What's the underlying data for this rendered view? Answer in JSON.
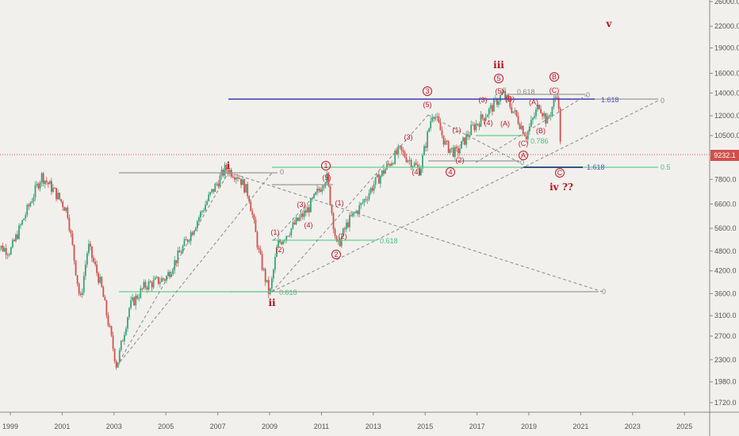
{
  "chart_data": {
    "type": "candlestick",
    "title": "",
    "yscale": "log",
    "ylim": [
      1650,
      27000
    ],
    "xlim": [
      1998.6,
      2026.5
    ],
    "y_ticks": [
      "26000.0",
      "22000.0",
      "19000.0",
      "16000.0",
      "14000.0",
      "12000.0",
      "10500.0",
      "7800.0",
      "6600.0",
      "5600.0",
      "4800.0",
      "4200.0",
      "3600.0",
      "3100.0",
      "2700.0",
      "2300.0",
      "1980.0",
      "1720.0"
    ],
    "x_ticks": [
      "1999",
      "2001",
      "2003",
      "2005",
      "2007",
      "2009",
      "2011",
      "2013",
      "2015",
      "2017",
      "2019",
      "2021",
      "2023",
      "2025"
    ],
    "last_price": "9232.1",
    "last_price_value": 9232.1,
    "price_path": [
      [
        1998.4,
        5000
      ],
      [
        1999.0,
        4800
      ],
      [
        1999.6,
        6200
      ],
      [
        2000.2,
        8000
      ],
      [
        2000.7,
        7200
      ],
      [
        2001.2,
        6300
      ],
      [
        2001.7,
        3400
      ],
      [
        2002.0,
        5000
      ],
      [
        2002.5,
        3800
      ],
      [
        2003.1,
        2200
      ],
      [
        2003.6,
        3300
      ],
      [
        2004.2,
        3800
      ],
      [
        2005.0,
        4000
      ],
      [
        2006.0,
        5500
      ],
      [
        2006.7,
        7000
      ],
      [
        2007.3,
        8400
      ],
      [
        2007.8,
        8000
      ],
      [
        2008.2,
        7000
      ],
      [
        2008.6,
        4700
      ],
      [
        2009.0,
        3550
      ],
      [
        2009.3,
        5000
      ],
      [
        2010.0,
        5800
      ],
      [
        2010.5,
        6400
      ],
      [
        2011.2,
        8000
      ],
      [
        2011.6,
        4900
      ],
      [
        2012.0,
        5800
      ],
      [
        2012.5,
        6500
      ],
      [
        2013.0,
        7500
      ],
      [
        2014.0,
        9500
      ],
      [
        2014.8,
        8300
      ],
      [
        2015.3,
        12500
      ],
      [
        2015.8,
        9800
      ],
      [
        2016.2,
        9300
      ],
      [
        2016.8,
        11000
      ],
      [
        2017.5,
        12500
      ],
      [
        2018.0,
        14000
      ],
      [
        2018.5,
        12000
      ],
      [
        2018.9,
        10500
      ],
      [
        2019.4,
        13000
      ],
      [
        2019.7,
        11500
      ],
      [
        2020.1,
        14200
      ],
      [
        2020.25,
        9232.1
      ]
    ],
    "annotations": {
      "i": "i",
      "ii": "ii",
      "iii": "iii",
      "iv": "iv ??",
      "v": "v",
      "c1": "1",
      "c2": "2",
      "c3": "3",
      "c4": "4",
      "c5": "5",
      "cA": "A",
      "cB": "B",
      "cC": "C",
      "p": [
        "(5)",
        "(3)",
        "(4)",
        "(1)",
        "(2)",
        "(1)",
        "(2)",
        "(5)",
        "(3)",
        "(4)",
        "(1)",
        "(2)",
        "(3)",
        "(4)",
        "(5)",
        "(B)",
        "(A)",
        "(A)",
        "(B)",
        "(C)",
        "(C)"
      ],
      "fib": [
        "0",
        "0.618",
        "0.618",
        "0",
        "0",
        "1.618",
        "0",
        "0.618",
        "0.786",
        "0",
        "1.618",
        "0.5"
      ]
    },
    "colors": {
      "up": "#3aa57a",
      "down": "#d2504a",
      "blue": "#3c3cb4",
      "green": "#5fd08a",
      "grey": "#8a8a8a",
      "red": "#c0172a"
    }
  }
}
